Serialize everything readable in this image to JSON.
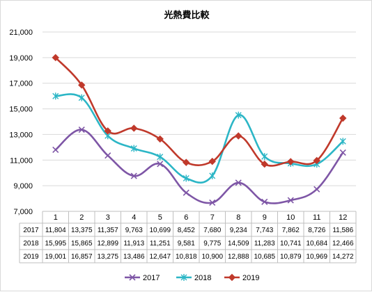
{
  "chart_data": {
    "type": "line",
    "title": "光熱費比較",
    "categories": [
      "1",
      "2",
      "3",
      "4",
      "5",
      "6",
      "7",
      "8",
      "9",
      "10",
      "11",
      "12"
    ],
    "series": [
      {
        "name": "2017",
        "color": "#7e56a6",
        "marker": "x-marker",
        "values": [
          11804,
          13375,
          11357,
          9763,
          10699,
          8452,
          7680,
          9234,
          7743,
          7862,
          8726,
          11586
        ],
        "labels": [
          "11,804",
          "13,375",
          "11,357",
          "9,763",
          "10,699",
          "8,452",
          "7,680",
          "9,234",
          "7,743",
          "7,862",
          "8,726",
          "11,586"
        ]
      },
      {
        "name": "2018",
        "color": "#2cb6c6",
        "marker": "star-marker",
        "values": [
          15995,
          15865,
          12899,
          11913,
          11251,
          9581,
          9775,
          14509,
          11283,
          10741,
          10684,
          12466
        ],
        "labels": [
          "15,995",
          "15,865",
          "12,899",
          "11,913",
          "11,251",
          "9,581",
          "9,775",
          "14,509",
          "11,283",
          "10,741",
          "10,684",
          "12,466"
        ]
      },
      {
        "name": "2019",
        "color": "#c0392b",
        "marker": "diamond-marker",
        "values": [
          19001,
          16857,
          13275,
          13486,
          12647,
          10818,
          10900,
          12888,
          10685,
          10879,
          10969,
          14272
        ],
        "labels": [
          "19,001",
          "16,857",
          "13,275",
          "13,486",
          "12,647",
          "10,818",
          "10,900",
          "12,888",
          "10,685",
          "10,879",
          "10,969",
          "14,272"
        ]
      }
    ],
    "ylim": [
      7000,
      21000
    ],
    "yticks": [
      7000,
      9000,
      11000,
      13000,
      15000,
      17000,
      19000,
      21000
    ],
    "ytick_labels": [
      "7,000",
      "9,000",
      "11,000",
      "13,000",
      "15,000",
      "17,000",
      "19,000",
      "21,000"
    ],
    "grid": true,
    "legend_position": "bottom",
    "data_table": true
  }
}
